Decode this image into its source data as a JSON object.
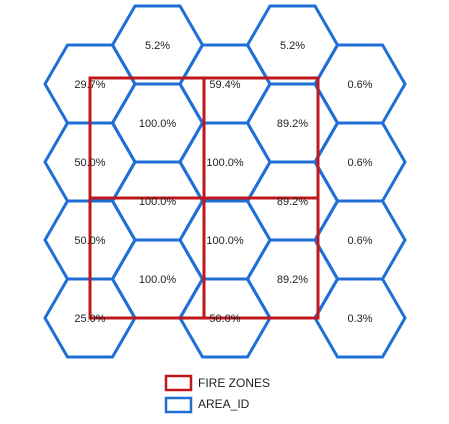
{
  "legend": {
    "fire_zones_label": "FIRE ZONES",
    "area_id_label": "AREA_ID"
  },
  "colors": {
    "fire_zone_stroke": "#c0171b",
    "area_stroke": "#1f6fd6"
  },
  "hexagons": [
    {
      "col": 1,
      "row": 0,
      "label": "5.2%"
    },
    {
      "col": 3,
      "row": 0,
      "label": "5.2%"
    },
    {
      "col": 0,
      "row": 1,
      "label": "29.7%"
    },
    {
      "col": 2,
      "row": 1,
      "label": "59.4%"
    },
    {
      "col": 4,
      "row": 1,
      "label": "0.6%"
    },
    {
      "col": 1,
      "row": 2,
      "label": "100.0%"
    },
    {
      "col": 3,
      "row": 2,
      "label": "89.2%"
    },
    {
      "col": 0,
      "row": 3,
      "label": "50.0%"
    },
    {
      "col": 2,
      "row": 3,
      "label": "100.0%"
    },
    {
      "col": 4,
      "row": 3,
      "label": "0.6%"
    },
    {
      "col": 1,
      "row": 4,
      "label": "100.0%"
    },
    {
      "col": 3,
      "row": 4,
      "label": "89.2%"
    },
    {
      "col": 0,
      "row": 5,
      "label": "50.0%"
    },
    {
      "col": 2,
      "row": 5,
      "label": "100.0%"
    },
    {
      "col": 4,
      "row": 5,
      "label": "0.6%"
    },
    {
      "col": 1,
      "row": 6,
      "label": "100.0%"
    },
    {
      "col": 3,
      "row": 6,
      "label": "89.2%"
    },
    {
      "col": 0,
      "row": 7,
      "label": "25.0%"
    },
    {
      "col": 2,
      "row": 7,
      "label": "50.0%"
    },
    {
      "col": 4,
      "row": 7,
      "label": "0.3%"
    }
  ],
  "fire_zones": [
    {
      "zone_col": 0,
      "zone_row": 0
    },
    {
      "zone_col": 1,
      "zone_row": 0
    },
    {
      "zone_col": 0,
      "zone_row": 1
    },
    {
      "zone_col": 1,
      "zone_row": 1
    }
  ]
}
